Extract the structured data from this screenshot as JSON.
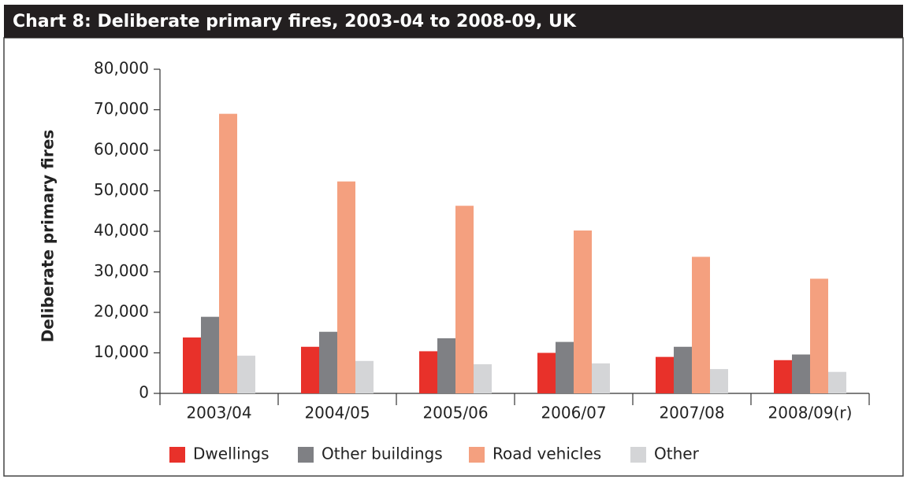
{
  "chart_data": {
    "type": "bar",
    "title": "Chart 8:   Deliberate primary fires, 2003-04 to 2008-09, UK",
    "y_label": "Deliberate primary fires",
    "categories": [
      "2003/04",
      "2004/05",
      "2005/06",
      "2006/07",
      "2007/08",
      "2008/09(r)"
    ],
    "series": [
      {
        "name": "Dwellings",
        "color": "#e8312a",
        "values": [
          13800,
          11500,
          10400,
          10000,
          9000,
          8200
        ]
      },
      {
        "name": "Other buildings",
        "color": "#7f8084",
        "values": [
          18900,
          15200,
          13600,
          12700,
          11500,
          9600
        ]
      },
      {
        "name": "Road vehicles",
        "color": "#f4a07f",
        "values": [
          69000,
          52300,
          46300,
          40200,
          33700,
          28300
        ]
      },
      {
        "name": "Other",
        "color": "#d4d5d7",
        "values": [
          9300,
          8000,
          7200,
          7400,
          6000,
          5300
        ]
      }
    ],
    "ylim": [
      0,
      80000
    ],
    "yticks": [
      0,
      {
        "value": 10000,
        "label": "10,000"
      },
      {
        "value": 20000,
        "label": "20,000"
      },
      {
        "value": 30000,
        "label": "30,000"
      },
      {
        "value": 40000,
        "label": "40,000"
      },
      {
        "value": 50000,
        "label": "50,000"
      },
      {
        "value": 60000,
        "label": "60,000"
      },
      {
        "value": 70000,
        "label": "70,000"
      },
      {
        "value": 80000,
        "label": "80,000"
      }
    ],
    "grid": false,
    "legend": "bottom"
  }
}
